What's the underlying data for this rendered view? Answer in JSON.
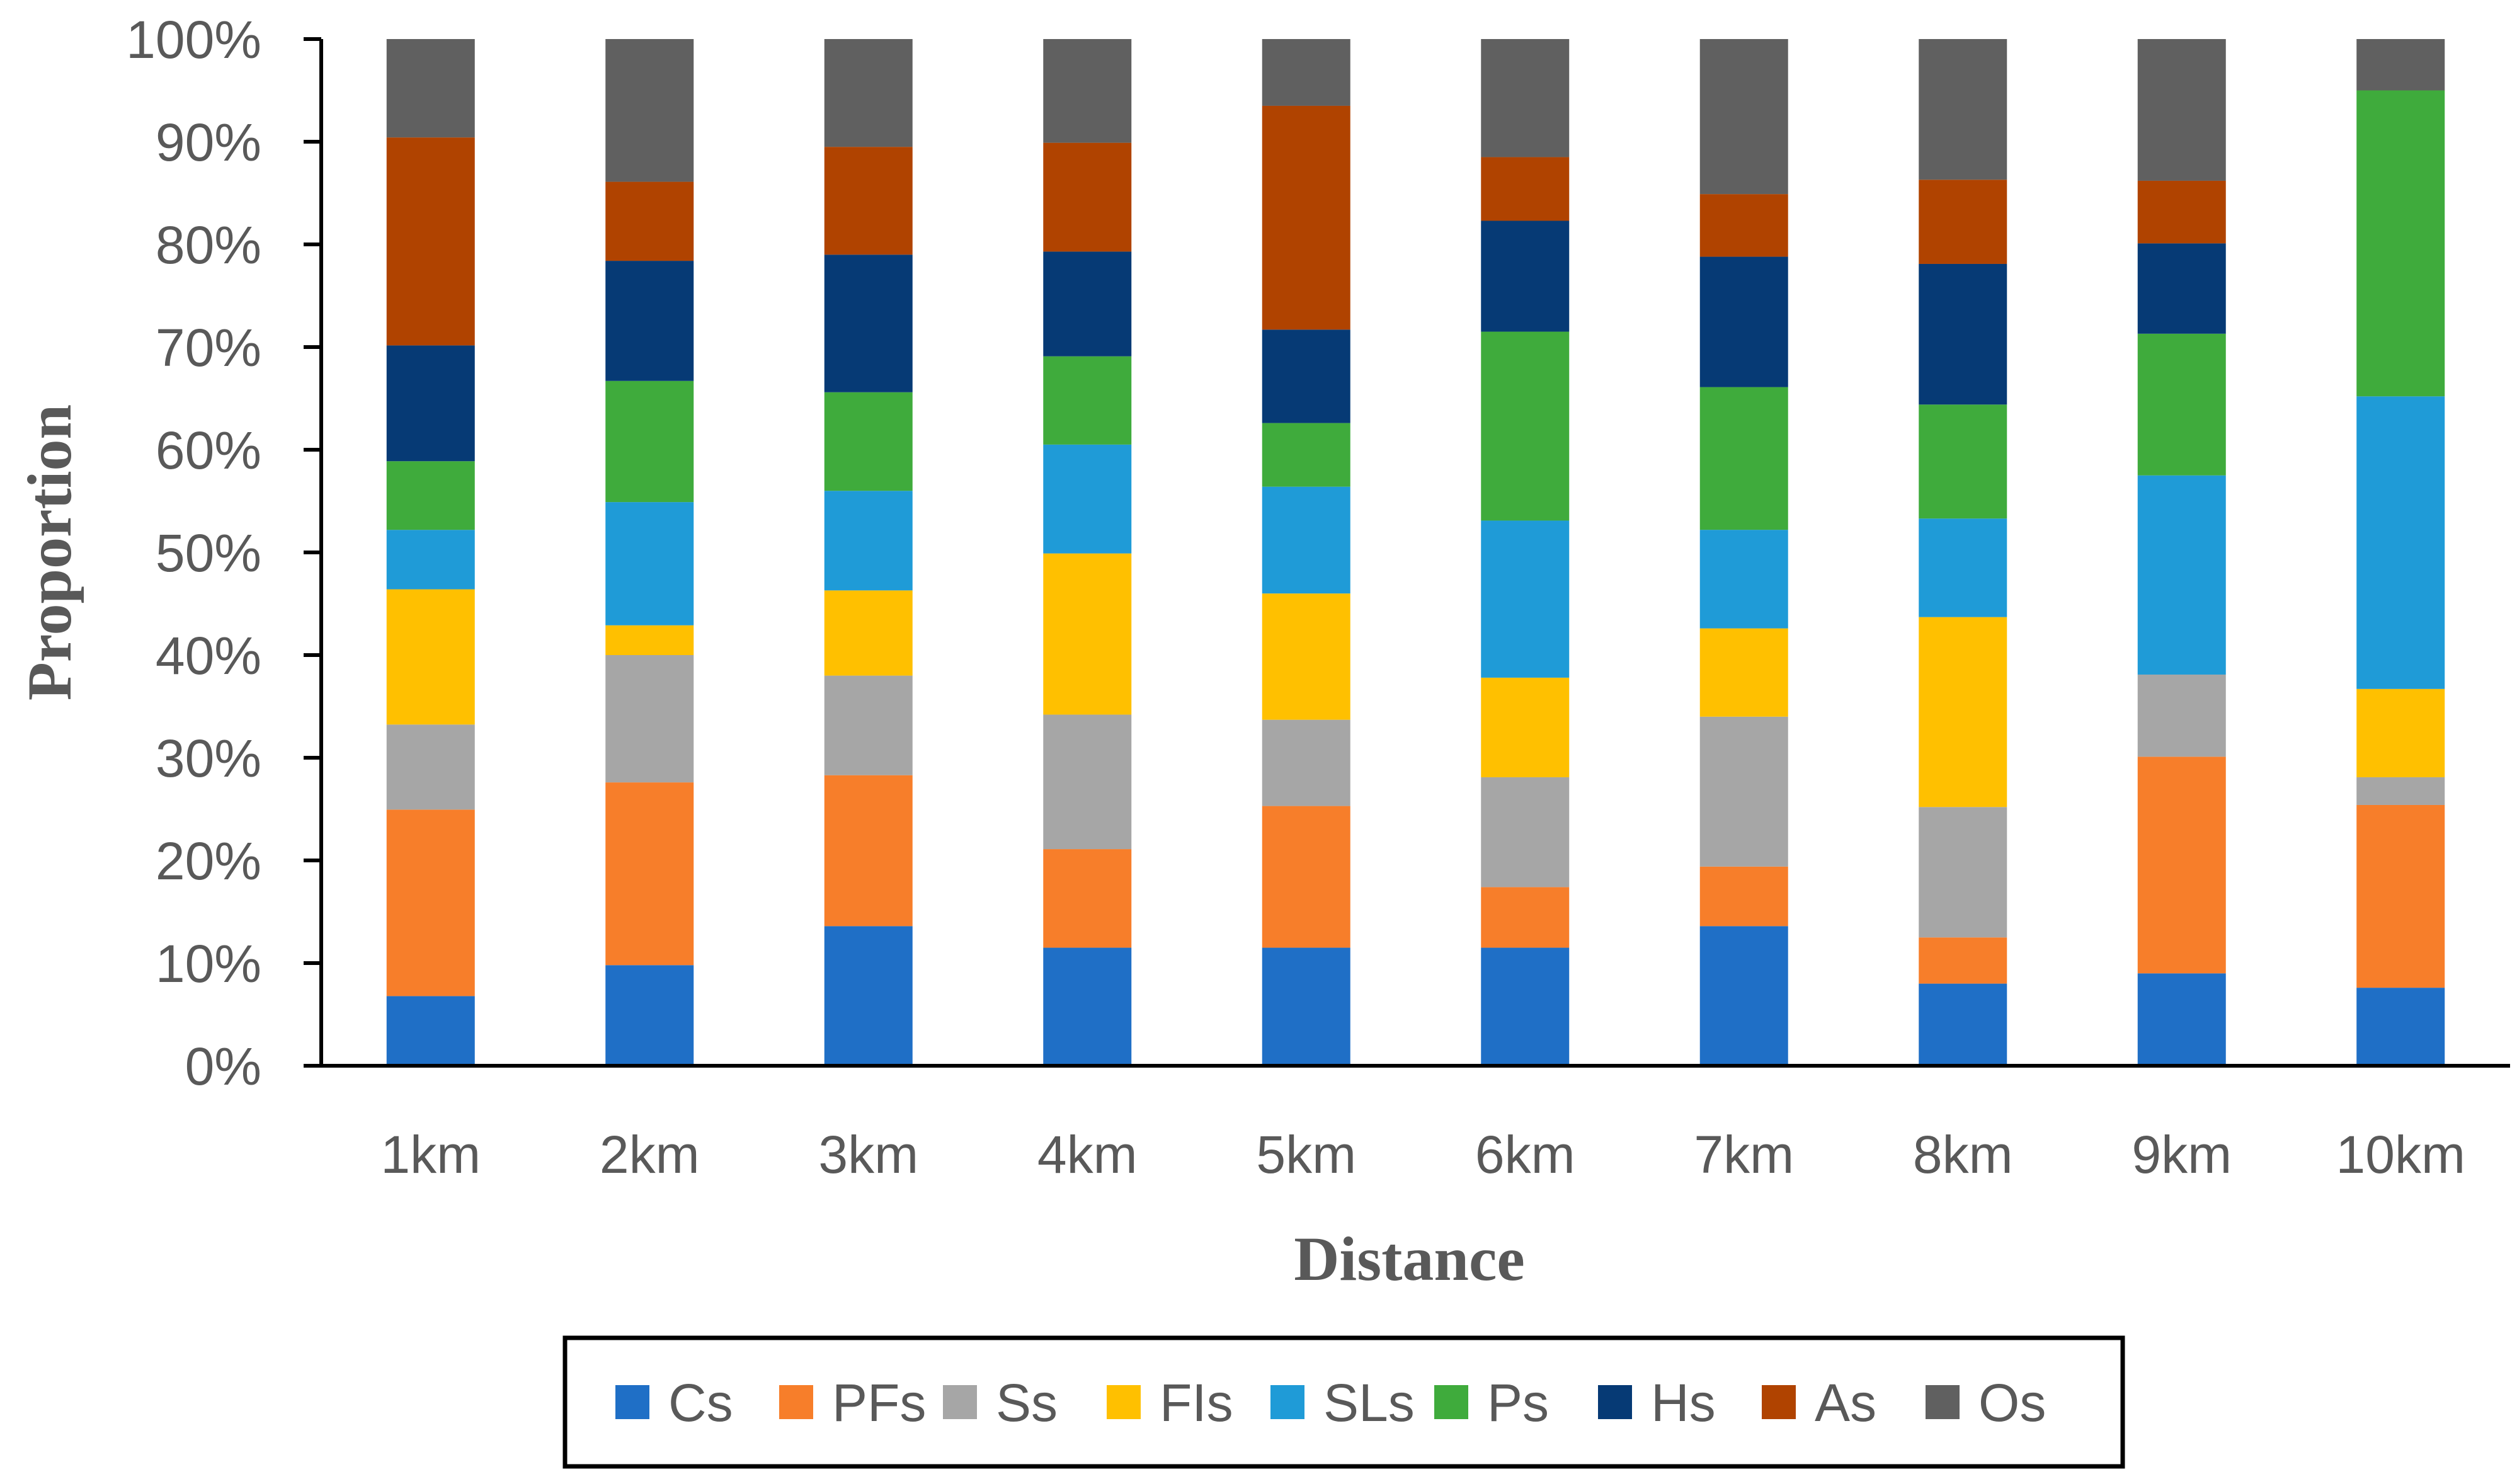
{
  "chart_data": {
    "type": "bar",
    "stacked": true,
    "percent": true,
    "title": "",
    "xlabel": "Distance",
    "ylabel": "Proportion",
    "ylim": [
      0,
      100
    ],
    "yticks": [
      "0%",
      "10%",
      "20%",
      "30%",
      "40%",
      "50%",
      "60%",
      "70%",
      "80%",
      "90%",
      "100%"
    ],
    "categories": [
      "1km",
      "2km",
      "3km",
      "4km",
      "5km",
      "6km",
      "7km",
      "8km",
      "9km",
      "10km"
    ],
    "legend_position": "bottom",
    "series": [
      {
        "name": "Cs",
        "color": "#1f6fc6",
        "values": [
          6.8,
          9.8,
          13.6,
          11.5,
          11.5,
          11.5,
          13.6,
          8.0,
          9.0,
          7.6
        ]
      },
      {
        "name": "PFs",
        "color": "#f77e2a",
        "values": [
          18.2,
          17.8,
          14.7,
          9.6,
          13.8,
          5.9,
          5.8,
          4.5,
          21.1,
          17.8
        ]
      },
      {
        "name": "Ss",
        "color": "#a6a6a6",
        "values": [
          8.3,
          12.4,
          9.7,
          13.1,
          8.4,
          10.7,
          14.6,
          12.7,
          8.0,
          2.7
        ]
      },
      {
        "name": "FIs",
        "color": "#ffc000",
        "values": [
          13.2,
          2.9,
          8.3,
          15.7,
          12.3,
          9.7,
          8.6,
          18.5,
          0.0,
          8.6
        ]
      },
      {
        "name": "SLs",
        "color": "#1f9bd7",
        "values": [
          5.8,
          12.0,
          9.7,
          10.6,
          10.4,
          15.3,
          9.6,
          9.6,
          19.4,
          28.5
        ]
      },
      {
        "name": "Ps",
        "color": "#3fab3c",
        "values": [
          6.7,
          11.8,
          9.6,
          8.6,
          6.2,
          18.4,
          13.9,
          11.1,
          13.8,
          29.8
        ]
      },
      {
        "name": "Hs",
        "color": "#063a75",
        "values": [
          11.3,
          11.7,
          13.4,
          10.2,
          9.1,
          10.8,
          12.7,
          13.7,
          8.8,
          0.0
        ]
      },
      {
        "name": "As",
        "color": "#b04300",
        "values": [
          20.3,
          7.7,
          10.5,
          10.6,
          21.8,
          6.2,
          6.1,
          8.2,
          6.1,
          0.0
        ]
      },
      {
        "name": "Os",
        "color": "#606060",
        "values": [
          9.6,
          13.9,
          10.5,
          10.1,
          6.5,
          11.5,
          15.1,
          13.7,
          13.8,
          5.0
        ]
      }
    ]
  }
}
